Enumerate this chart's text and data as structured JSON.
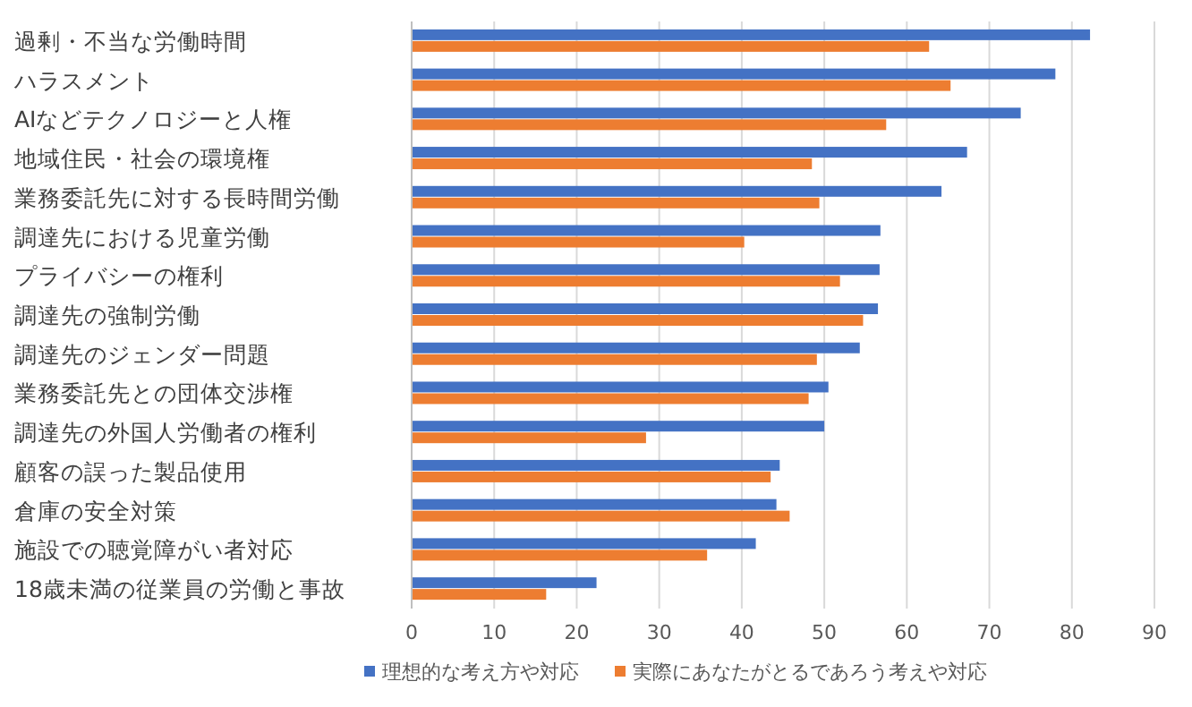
{
  "chart_data": {
    "type": "bar",
    "orientation": "horizontal",
    "categories": [
      "過剰・不当な労働時間",
      "ハラスメント",
      "AIなどテクノロジーと人権",
      "地域住民・社会の環境権",
      "業務委託先に対する長時間労働",
      "調達先における児童労働",
      "プライバシーの権利",
      "調達先の強制労働",
      "調達先のジェンダー問題",
      "業務委託先との団体交渉権",
      "調達先の外国人労働者の権利",
      "顧客の誤った製品使用",
      "倉庫の安全対策",
      "施設での聴覚障がい者対応",
      "18歳未満の従業員の労働と事故"
    ],
    "series": [
      {
        "name": "理想的な考え方や対応",
        "color": "#4472c4",
        "values": [
          82.2,
          78.0,
          73.8,
          67.3,
          64.2,
          56.8,
          56.7,
          56.5,
          54.3,
          50.5,
          50.0,
          44.6,
          44.2,
          41.7,
          22.4
        ]
      },
      {
        "name": "実際にあなたがとるであろう考えや対応",
        "color": "#ed7d31",
        "values": [
          62.7,
          65.3,
          57.5,
          48.5,
          49.4,
          40.3,
          51.9,
          54.7,
          49.1,
          48.1,
          28.4,
          43.5,
          45.8,
          35.8,
          16.3
        ]
      }
    ],
    "xlim": [
      0,
      90
    ],
    "xticks": [
      0,
      10,
      20,
      30,
      40,
      50,
      60,
      70,
      80,
      90
    ],
    "grid": "x",
    "legend": "bottom"
  }
}
